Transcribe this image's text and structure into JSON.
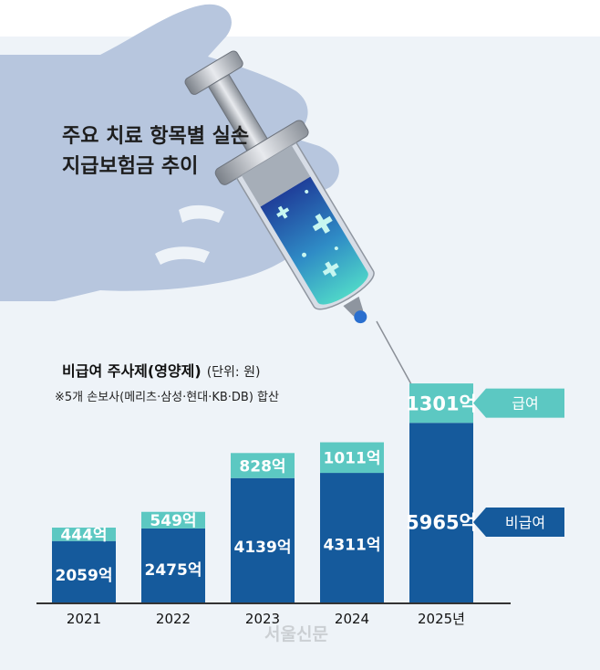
{
  "headline": "주요 치료 항목별 실손 지급보험금 추이",
  "subtitle": "비급여 주사제(영양제)",
  "unit_label": "(단위: 원)",
  "note": "※5개 손보사(메리츠·삼성·현대·KB·DB) 합산",
  "watermark": "서울신문",
  "colors": {
    "covered": "#5cc8c2",
    "non_covered": "#155a9c",
    "baseline": "#333333",
    "panel_background": "#eef3f8"
  },
  "chart_data": {
    "type": "bar",
    "stacked": true,
    "categories": [
      "2021",
      "2022",
      "2023",
      "2024",
      "2025년"
    ],
    "series": [
      {
        "name": "비급여",
        "color": "#155a9c",
        "values": [
          2059,
          2475,
          4139,
          4311,
          5965
        ],
        "labels": [
          "2059억",
          "2475억",
          "4139억",
          "4311억",
          "5965억"
        ]
      },
      {
        "name": "급여",
        "color": "#5cc8c2",
        "values": [
          444,
          549,
          828,
          1011,
          1301
        ],
        "labels": [
          "444억",
          "549억",
          "828억",
          "1011억",
          "1301억"
        ]
      }
    ],
    "ylim": [
      0,
      7600
    ],
    "legend": [
      "급여",
      "비급여"
    ],
    "legend_position": "right of last bar",
    "grid": false
  }
}
